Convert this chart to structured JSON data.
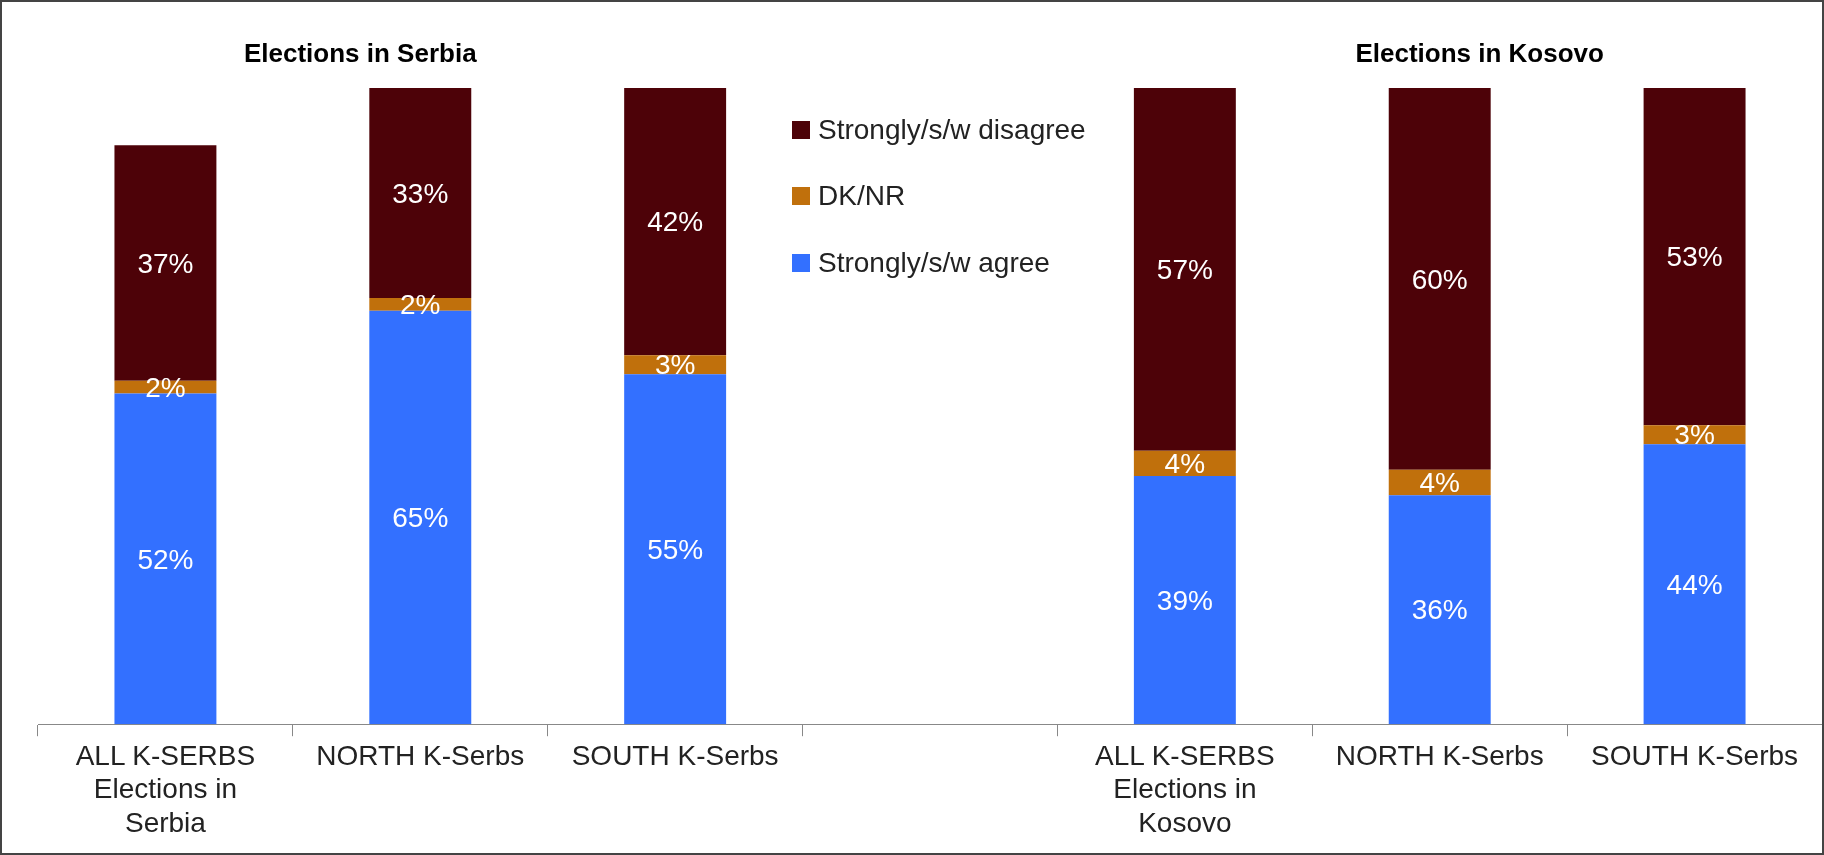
{
  "chart_data": {
    "type": "bar",
    "stacked": true,
    "categories": [
      "ALL K-SERBS Elections in Serbia",
      "NORTH K-Serbs",
      "SOUTH K-Serbs",
      null,
      "ALL K-SERBS Elections in Kosovo",
      "NORTH K-Serbs",
      "SOUTH K-Serbs"
    ],
    "series": [
      {
        "name": "Strongly/s/w agree",
        "color": "#3370ff",
        "values": [
          52,
          65,
          55,
          null,
          39,
          36,
          44
        ],
        "value_labels": [
          "52%",
          "65%",
          "55%",
          null,
          "39%",
          "36%",
          "44%"
        ]
      },
      {
        "name": "DK/NR",
        "color": "#c0700c",
        "values": [
          2,
          2,
          3,
          null,
          4,
          4,
          3
        ],
        "value_labels": [
          "2%",
          "2%",
          "3%",
          null,
          "4%",
          "4%",
          "3%"
        ]
      },
      {
        "name": "Strongly/s/w disagree",
        "color": "#4d0208",
        "values": [
          37,
          33,
          42,
          null,
          57,
          60,
          53
        ],
        "value_labels": [
          "37%",
          "33%",
          "42%",
          null,
          "57%",
          "60%",
          "53%"
        ]
      }
    ],
    "tick_labels": "x",
    "grid": false,
    "legend": "top",
    "annotations": [
      "Elections in Serbia",
      "Elections in Kosovo"
    ]
  }
}
